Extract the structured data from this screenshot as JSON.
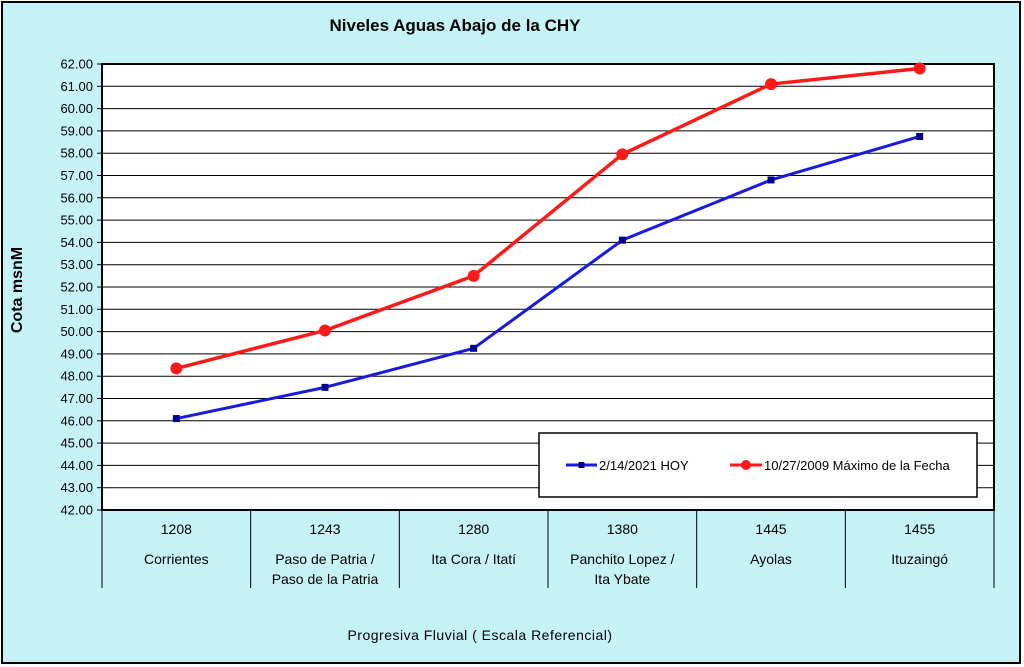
{
  "chart_data": {
    "type": "line",
    "title": "Niveles Aguas Abajo de la CHY",
    "xlabel": "Progresiva Fluvial ( Escala Referencial)",
    "ylabel": "Cota msnM",
    "ylim": [
      42.0,
      62.0
    ],
    "ytick_step": 1.0,
    "categories": [
      {
        "code": "1208",
        "name": [
          "Corrientes"
        ]
      },
      {
        "code": "1243",
        "name": [
          "Paso de Patria /",
          "Paso de la Patria"
        ]
      },
      {
        "code": "1280",
        "name": [
          "Ita Cora / Itatí"
        ]
      },
      {
        "code": "1380",
        "name": [
          "Panchito Lopez /",
          "Ita Ybate"
        ]
      },
      {
        "code": "1445",
        "name": [
          "Ayolas"
        ]
      },
      {
        "code": "1455",
        "name": [
          "Ituzaingó"
        ]
      }
    ],
    "series": [
      {
        "name": "2/14/2021 HOY",
        "color": "#1a1adf",
        "marker": "square",
        "values": [
          46.1,
          47.5,
          49.25,
          54.1,
          56.8,
          58.75
        ]
      },
      {
        "name": "10/27/2009 Máximo de la Fecha",
        "color": "#ff1a1a",
        "marker": "circle",
        "values": [
          48.35,
          50.05,
          52.5,
          57.95,
          61.1,
          61.8
        ]
      }
    ],
    "grid": true,
    "legend_position": "bottom-right"
  }
}
